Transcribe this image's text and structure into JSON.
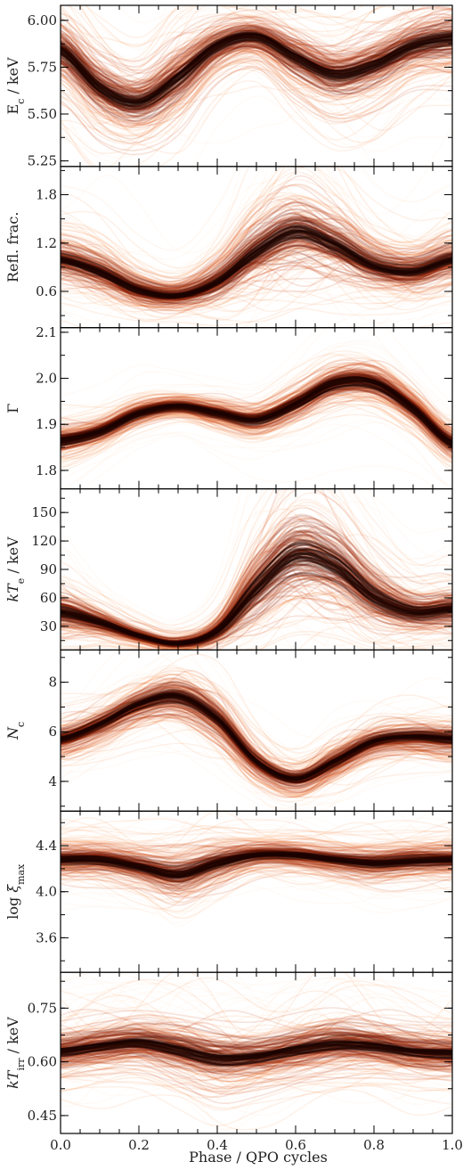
{
  "figure": {
    "xlabel": "Phase / QPO cycles"
  },
  "chart_data": {
    "type": "line",
    "style": "stacked-panels-density-traces",
    "colormap": [
      "#fff1e6",
      "#fdd0a2",
      "#f5813a",
      "#c93a08",
      "#7a1502",
      "#1a0300"
    ],
    "xlim": [
      0,
      1
    ],
    "xticks": [
      0.0,
      0.2,
      0.4,
      0.6,
      0.8,
      1.0
    ],
    "xtick_labels": [
      "0.0",
      "0.2",
      "0.4",
      "0.6",
      "0.8",
      "1.0"
    ],
    "grid": false,
    "panels": [
      {
        "ylabel_html": "E<tspan baseline-shift='sub' font-size='11'>c</tspan> / keV",
        "ylabel_text": "Ec / keV",
        "ylim": [
          5.22,
          6.08
        ],
        "yticks": [
          5.25,
          5.5,
          5.75,
          6.0
        ],
        "ytick_labels": [
          "5.25",
          "5.50",
          "5.75",
          "6.00"
        ],
        "x": [
          0.0,
          0.1,
          0.2,
          0.3,
          0.4,
          0.5,
          0.6,
          0.7,
          0.8,
          0.9,
          1.0
        ],
        "median": [
          5.84,
          5.64,
          5.56,
          5.69,
          5.86,
          5.91,
          5.8,
          5.71,
          5.76,
          5.86,
          5.9
        ],
        "spread": [
          0.1,
          0.1,
          0.09,
          0.1,
          0.07,
          0.06,
          0.08,
          0.09,
          0.09,
          0.08,
          0.09
        ]
      },
      {
        "ylabel_html": "Refl. frac.",
        "ylabel_text": "Refl. frac.",
        "ylim": [
          0.15,
          2.15
        ],
        "yticks": [
          0.6,
          1.2,
          1.8
        ],
        "ytick_labels": [
          "0.6",
          "1.2",
          "1.8"
        ],
        "x": [
          0.0,
          0.1,
          0.2,
          0.3,
          0.4,
          0.5,
          0.6,
          0.7,
          0.8,
          0.9,
          1.0
        ],
        "median": [
          1.0,
          0.85,
          0.62,
          0.55,
          0.72,
          1.1,
          1.35,
          1.18,
          0.92,
          0.85,
          1.0
        ],
        "spread": [
          0.16,
          0.16,
          0.12,
          0.1,
          0.16,
          0.26,
          0.3,
          0.26,
          0.18,
          0.15,
          0.16
        ]
      },
      {
        "ylabel_html": "Γ",
        "ylabel_text": "Γ",
        "ylim": [
          1.76,
          2.11
        ],
        "yticks": [
          1.8,
          1.9,
          2.0,
          2.1
        ],
        "ytick_labels": [
          "1.8",
          "1.9",
          "2.0",
          "2.1"
        ],
        "x": [
          0.0,
          0.1,
          0.2,
          0.3,
          0.4,
          0.5,
          0.6,
          0.7,
          0.8,
          0.9,
          1.0
        ],
        "median": [
          1.865,
          1.885,
          1.925,
          1.94,
          1.925,
          1.91,
          1.945,
          1.99,
          1.99,
          1.935,
          1.86
        ],
        "spread": [
          0.02,
          0.017,
          0.015,
          0.012,
          0.015,
          0.017,
          0.02,
          0.022,
          0.022,
          0.02,
          0.02
        ]
      },
      {
        "ylabel_html": "<tspan font-style='italic'>kT</tspan><tspan baseline-shift='sub' font-size='11'>e</tspan> / keV",
        "ylabel_text": "kTe / keV",
        "ylim": [
          5,
          175
        ],
        "yticks": [
          30,
          60,
          90,
          120,
          150
        ],
        "ytick_labels": [
          "30",
          "60",
          "90",
          "120",
          "150"
        ],
        "x": [
          0.0,
          0.1,
          0.2,
          0.3,
          0.4,
          0.5,
          0.6,
          0.7,
          0.8,
          0.9,
          1.0
        ],
        "median": [
          45,
          34,
          20,
          12,
          25,
          70,
          105,
          95,
          62,
          45,
          48
        ],
        "spread": [
          12,
          8,
          5,
          4,
          8,
          22,
          28,
          25,
          18,
          12,
          12
        ]
      },
      {
        "ylabel_html": "<tspan font-style='italic'>N</tspan><tspan baseline-shift='sub' font-size='11'>c</tspan>",
        "ylabel_text": "Nc",
        "ylim": [
          2.8,
          9.3
        ],
        "yticks": [
          4,
          6,
          8
        ],
        "ytick_labels": [
          "4",
          "6",
          "8"
        ],
        "x": [
          0.0,
          0.1,
          0.2,
          0.3,
          0.4,
          0.5,
          0.6,
          0.7,
          0.8,
          0.9,
          1.0
        ],
        "median": [
          5.7,
          6.3,
          7.1,
          7.4,
          6.5,
          4.8,
          4.1,
          4.8,
          5.6,
          5.8,
          5.7
        ],
        "spread": [
          0.35,
          0.35,
          0.38,
          0.45,
          0.45,
          0.35,
          0.3,
          0.35,
          0.32,
          0.32,
          0.35
        ]
      },
      {
        "ylabel_html": "log <tspan font-style='italic'>ξ</tspan><tspan baseline-shift='sub' font-size='11'>max</tspan>",
        "ylabel_text": "log ξmax",
        "ylim": [
          3.3,
          4.7
        ],
        "yticks": [
          3.6,
          4.0,
          4.4
        ],
        "ytick_labels": [
          "3.6",
          "4.0",
          "4.4"
        ],
        "x": [
          0.0,
          0.1,
          0.2,
          0.3,
          0.4,
          0.5,
          0.6,
          0.7,
          0.8,
          0.9,
          1.0
        ],
        "median": [
          4.28,
          4.28,
          4.22,
          4.15,
          4.25,
          4.32,
          4.32,
          4.28,
          4.25,
          4.27,
          4.28
        ],
        "spread": [
          0.08,
          0.08,
          0.09,
          0.12,
          0.1,
          0.07,
          0.07,
          0.07,
          0.08,
          0.08,
          0.08
        ]
      },
      {
        "ylabel_html": "<tspan font-style='italic'>kT</tspan><tspan baseline-shift='sub' font-size='11'>irr</tspan> / keV",
        "ylabel_text": "kTirr / keV",
        "ylim": [
          0.4,
          0.85
        ],
        "yticks": [
          0.45,
          0.6,
          0.75
        ],
        "ytick_labels": [
          "0.45",
          "0.60",
          "0.75"
        ],
        "x": [
          0.0,
          0.1,
          0.2,
          0.3,
          0.4,
          0.5,
          0.6,
          0.7,
          0.8,
          0.9,
          1.0
        ],
        "median": [
          0.63,
          0.645,
          0.655,
          0.635,
          0.61,
          0.615,
          0.635,
          0.65,
          0.645,
          0.63,
          0.625
        ],
        "spread": [
          0.035,
          0.035,
          0.035,
          0.04,
          0.045,
          0.04,
          0.04,
          0.04,
          0.035,
          0.035,
          0.035
        ]
      }
    ]
  }
}
